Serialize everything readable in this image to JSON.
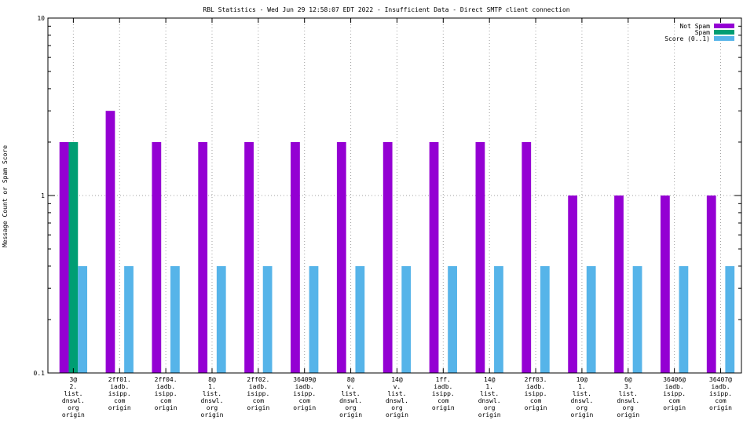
{
  "chart_data": {
    "type": "bar",
    "title": "RBL Statistics - Wed Jun 29 12:58:07 EDT 2022 - Insufficient Data - Direct SMTP client connection",
    "ylabel": "Message Count or Spam Score",
    "xlabel": "",
    "yscale": "log",
    "ylim": [
      0.1,
      10
    ],
    "yticks": [
      {
        "value": 10,
        "label": "10"
      },
      {
        "value": 1,
        "label": "1"
      },
      {
        "value": 0.1,
        "label": "0.1"
      }
    ],
    "grid": true,
    "legend_position": "top-right",
    "categories": [
      [
        "3@",
        "2.",
        "list.",
        "dnswl.",
        "org",
        "origin"
      ],
      [
        "2ff01.",
        "iadb.",
        "isipp.",
        "com",
        "origin"
      ],
      [
        "2ff04.",
        "iadb.",
        "isipp.",
        "com",
        "origin"
      ],
      [
        "8@",
        "1.",
        "list.",
        "dnswl.",
        "org",
        "origin"
      ],
      [
        "2ff02.",
        "iadb.",
        "isipp.",
        "com",
        "origin"
      ],
      [
        "36409@",
        "iadb.",
        "isipp.",
        "com",
        "origin"
      ],
      [
        "8@",
        "v.",
        "list.",
        "dnswl.",
        "org",
        "origin"
      ],
      [
        "14@",
        "v.",
        "list.",
        "dnswl.",
        "org",
        "origin"
      ],
      [
        "1ff.",
        "iadb.",
        "isipp.",
        "com",
        "origin"
      ],
      [
        "14@",
        "1.",
        "list.",
        "dnswl.",
        "org",
        "origin"
      ],
      [
        "2ff03.",
        "iadb.",
        "isipp.",
        "com",
        "origin"
      ],
      [
        "10@",
        "1.",
        "list.",
        "dnswl.",
        "org",
        "origin"
      ],
      [
        "6@",
        "3.",
        "list.",
        "dnswl.",
        "org",
        "origin"
      ],
      [
        "36406@",
        "iadb.",
        "isipp.",
        "com",
        "origin"
      ],
      [
        "36407@",
        "iadb.",
        "isipp.",
        "com",
        "origin"
      ]
    ],
    "series": [
      {
        "name": "Not Spam",
        "color": "#9400d3",
        "values": [
          2,
          3,
          2,
          2,
          2,
          2,
          2,
          2,
          2,
          2,
          2,
          1,
          1,
          1,
          1
        ]
      },
      {
        "name": "Spam",
        "color": "#009e73",
        "values": [
          2,
          null,
          null,
          null,
          null,
          null,
          null,
          null,
          null,
          null,
          null,
          null,
          null,
          null,
          null
        ]
      },
      {
        "name": "Score (0..1)",
        "color": "#56b4e9",
        "values": [
          0.4,
          0.4,
          0.4,
          0.4,
          0.4,
          0.4,
          0.4,
          0.4,
          0.4,
          0.4,
          0.4,
          0.4,
          0.4,
          0.4,
          0.4
        ]
      }
    ]
  }
}
